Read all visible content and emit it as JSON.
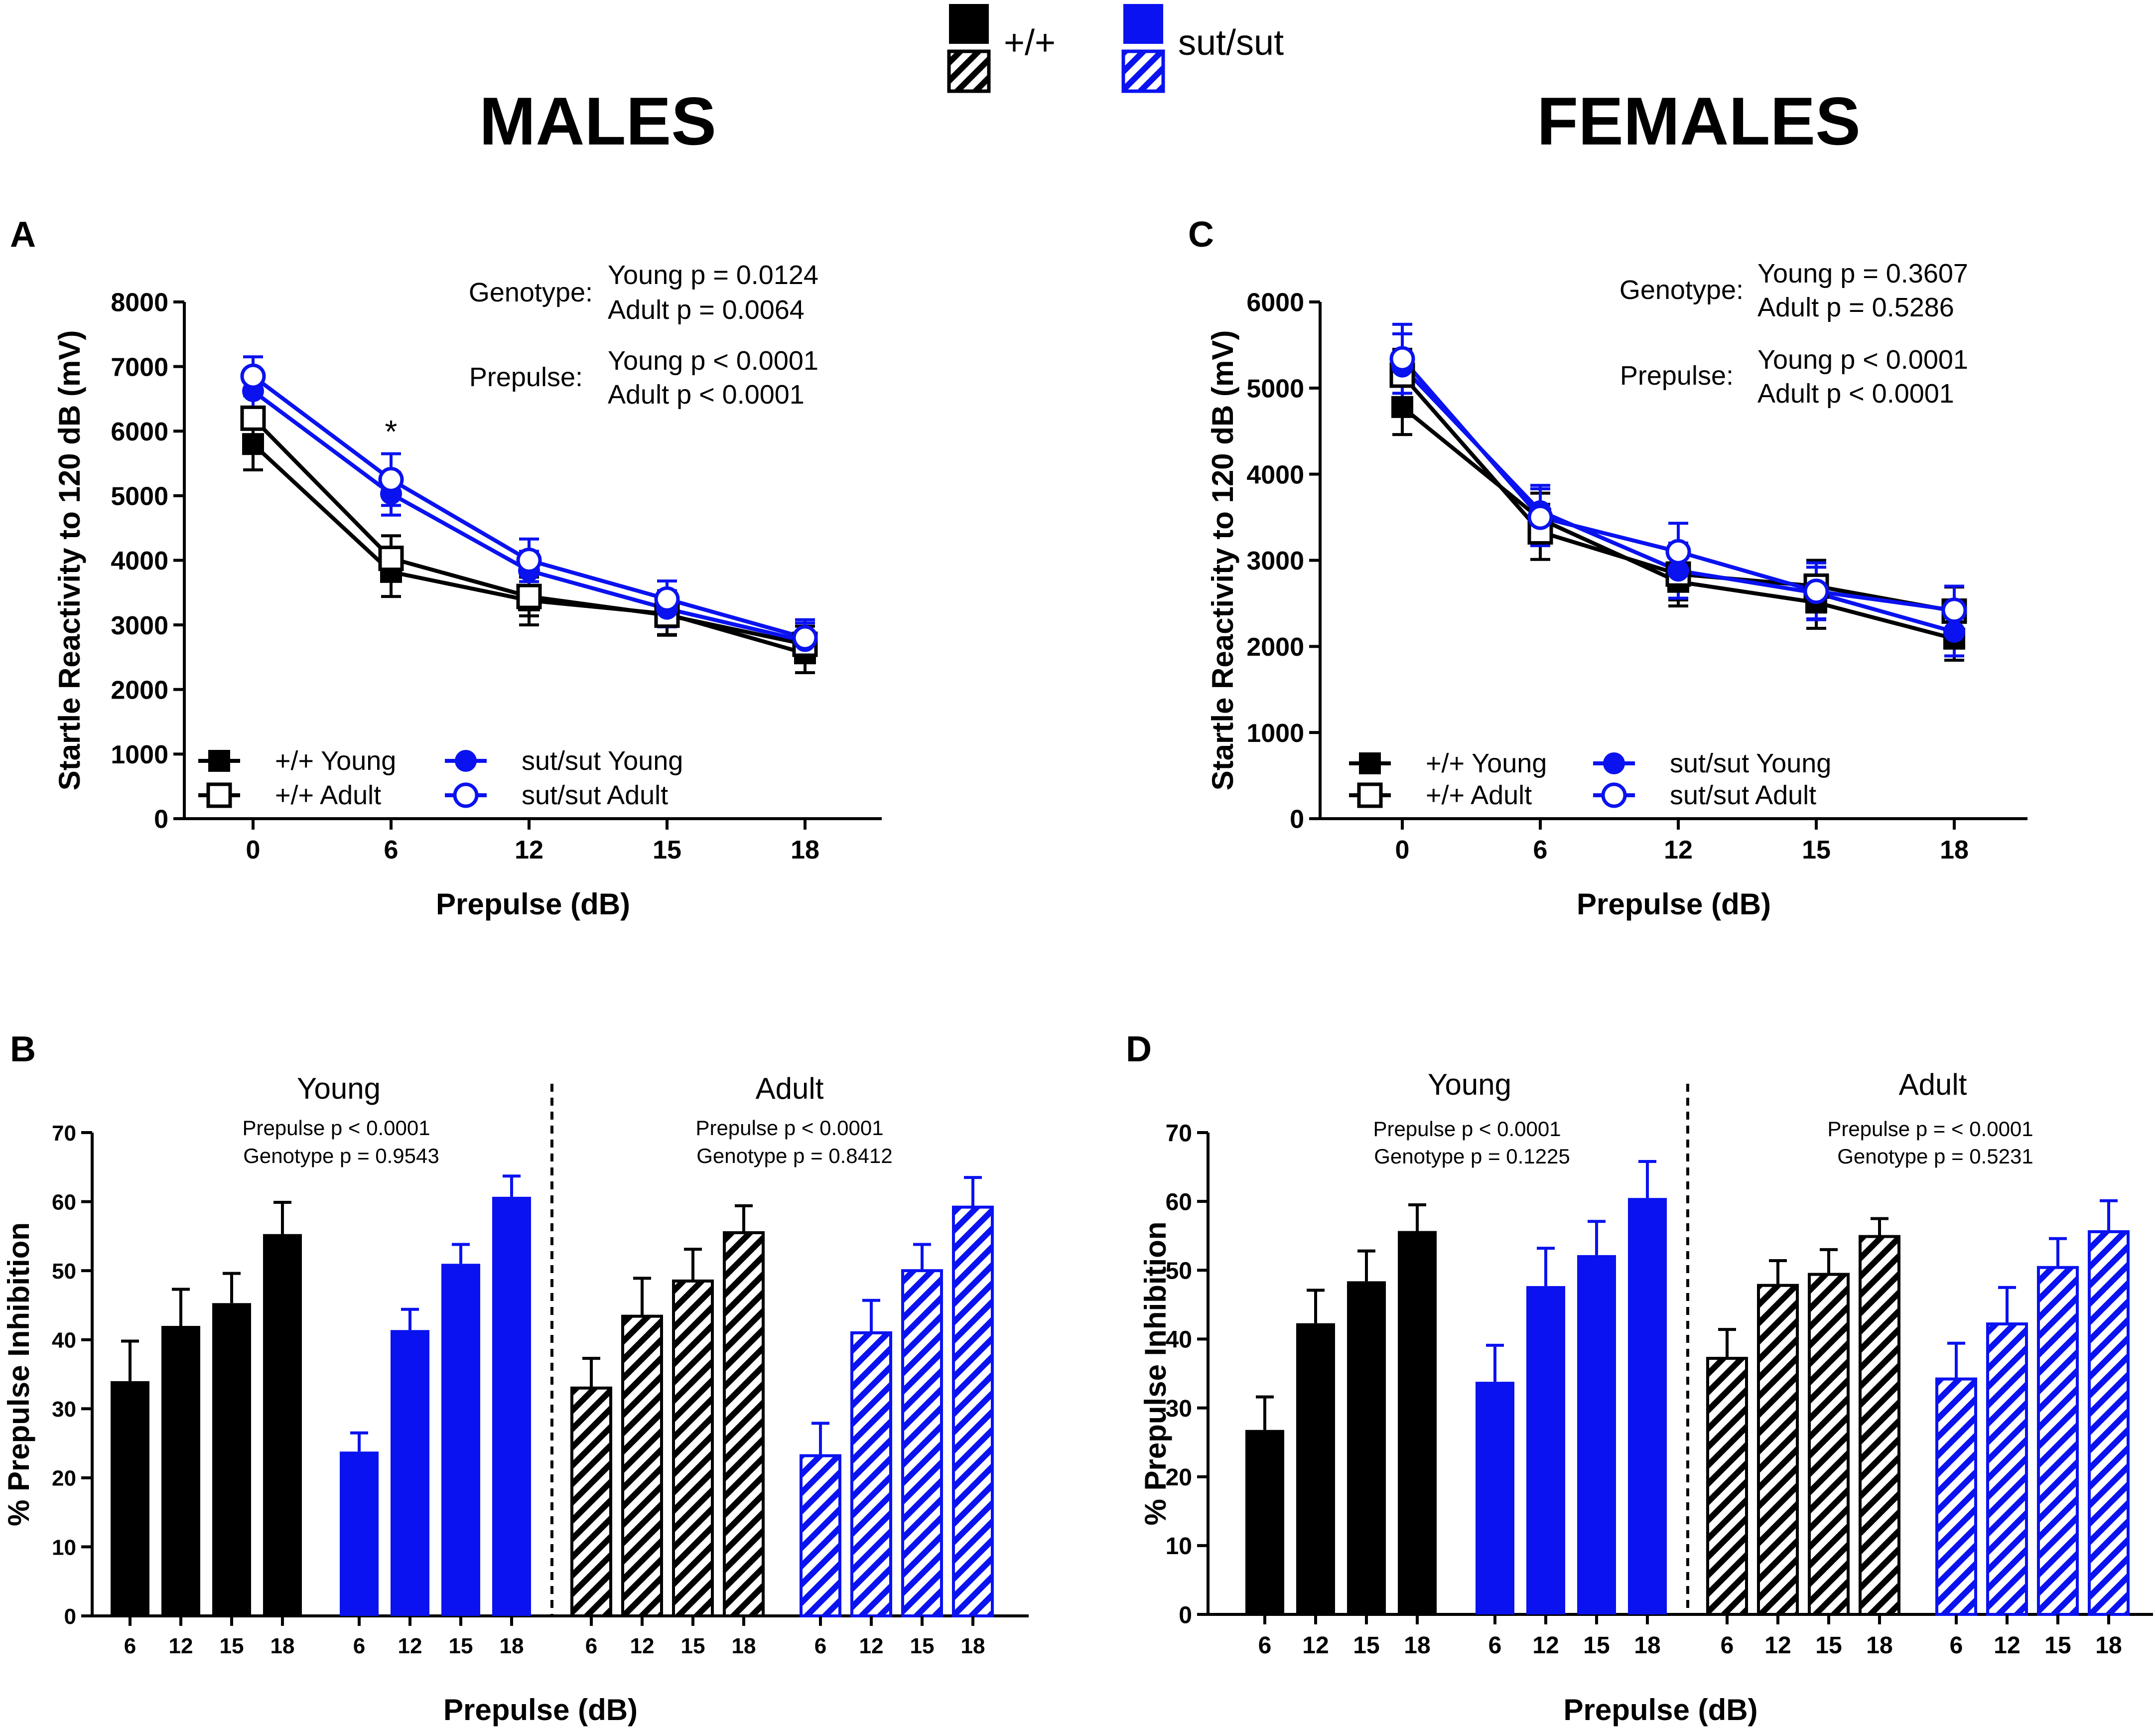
{
  "colors": {
    "black": "#000000",
    "blue": "#0a12f0"
  },
  "legend": {
    "wt_label": "+/+",
    "mut_label": "sut/sut"
  },
  "headings": {
    "males": "MALES",
    "females": "FEMALES"
  },
  "panels": {
    "a": "A",
    "b": "B",
    "c": "C",
    "d": "D"
  },
  "stats": {
    "A": {
      "genotype_label": "Genotype:",
      "genotype_young": "Young p = 0.0124",
      "genotype_adult": "Adult p = 0.0064",
      "prepulse_label": "Prepulse:",
      "prepulse_young": "Young p < 0.0001",
      "prepulse_adult": "Adult p < 0.0001"
    },
    "C": {
      "genotype_label": "Genotype:",
      "genotype_young": "Young p = 0.3607",
      "genotype_adult": "Adult p = 0.5286",
      "prepulse_label": "Prepulse:",
      "prepulse_young": "Young p < 0.0001",
      "prepulse_adult": "Adult p < 0.0001"
    },
    "B": {
      "young_title": "Young",
      "adult_title": "Adult",
      "young_prepulse": "Prepulse p < 0.0001",
      "young_genotype": "Genotype p = 0.9543",
      "adult_prepulse": "Prepulse p < 0.0001",
      "adult_genotype": "Genotype p = 0.8412"
    },
    "D": {
      "young_title": "Young",
      "adult_title": "Adult",
      "young_prepulse": "Prepulse p < 0.0001",
      "young_genotype": "Genotype p = 0.1225",
      "adult_prepulse": "Prepulse p = < 0.0001",
      "adult_genotype": "Genotype p = 0.5231"
    }
  },
  "chart_data": [
    {
      "panel": "A",
      "type": "line",
      "xlabel": "Prepulse (dB)",
      "ylabel": "Startle Reactivity to 120 dB (mV)",
      "categories": [
        "0",
        "6",
        "12",
        "15",
        "18"
      ],
      "ylim": [
        0,
        8000
      ],
      "yticks": [
        0,
        1000,
        2000,
        3000,
        4000,
        5000,
        6000,
        7000,
        8000
      ],
      "significance": {
        "category": "6",
        "mark": "*"
      },
      "series": [
        {
          "name": "+/+ Young",
          "color": "black",
          "marker": "square-filled",
          "values": [
            5800,
            3820,
            3380,
            3170,
            2560
          ],
          "errors": [
            400,
            380,
            380,
            330,
            300
          ]
        },
        {
          "name": "+/+ Adult",
          "color": "black",
          "marker": "square-open",
          "values": [
            6200,
            4030,
            3440,
            3150,
            2700
          ],
          "errors": [
            350,
            350,
            300,
            300,
            280
          ]
        },
        {
          "name": "sut/sut Young",
          "color": "blue",
          "marker": "circle-filled",
          "values": [
            6620,
            5030,
            3840,
            3250,
            2750
          ],
          "errors": [
            330,
            330,
            300,
            280,
            280
          ]
        },
        {
          "name": "sut/sut Adult",
          "color": "blue",
          "marker": "circle-open",
          "values": [
            6850,
            5250,
            4000,
            3400,
            2800
          ],
          "errors": [
            300,
            400,
            330,
            280,
            280
          ]
        }
      ]
    },
    {
      "panel": "C",
      "type": "line",
      "xlabel": "Prepulse (dB)",
      "ylabel": "Startle Reactivity to 120 dB (mV)",
      "categories": [
        "0",
        "6",
        "12",
        "15",
        "18"
      ],
      "ylim": [
        0,
        6000
      ],
      "yticks": [
        0,
        1000,
        2000,
        3000,
        4000,
        5000,
        6000
      ],
      "series": [
        {
          "name": "+/+ Young",
          "color": "black",
          "marker": "square-filled",
          "values": [
            4780,
            3480,
            2750,
            2510,
            2090
          ],
          "errors": [
            320,
            300,
            280,
            300,
            250
          ]
        },
        {
          "name": "+/+ Adult",
          "color": "black",
          "marker": "square-open",
          "values": [
            5150,
            3330,
            2840,
            2700,
            2410
          ],
          "errors": [
            300,
            320,
            300,
            300,
            280
          ]
        },
        {
          "name": "sut/sut Young",
          "color": "blue",
          "marker": "circle-filled",
          "values": [
            5250,
            3570,
            2880,
            2620,
            2170
          ],
          "errors": [
            380,
            300,
            320,
            300,
            280
          ]
        },
        {
          "name": "sut/sut Adult",
          "color": "blue",
          "marker": "circle-open",
          "values": [
            5340,
            3500,
            3100,
            2640,
            2420
          ],
          "errors": [
            400,
            330,
            330,
            330,
            280
          ]
        }
      ]
    },
    {
      "panel": "B",
      "type": "bar",
      "xlabel": "Prepulse (dB)",
      "ylabel": "% Prepulse Inhibition",
      "ylim": [
        0,
        70
      ],
      "yticks": [
        0,
        10,
        20,
        30,
        40,
        50,
        60,
        70
      ],
      "categories": [
        "6",
        "12",
        "15",
        "18"
      ],
      "groups": [
        {
          "name": "+/+ Young",
          "color": "black",
          "pattern": "solid",
          "values": [
            34,
            42,
            45.3,
            55.3
          ],
          "errors": [
            5.8,
            5.3,
            4.3,
            4.6
          ]
        },
        {
          "name": "sut/sut Young",
          "color": "blue",
          "pattern": "solid",
          "values": [
            23.8,
            41.4,
            51,
            60.7
          ],
          "errors": [
            2.7,
            3,
            2.8,
            3
          ]
        },
        {
          "name": "+/+ Adult",
          "color": "black",
          "pattern": "hatched",
          "values": [
            33,
            43.4,
            48.5,
            55.5
          ],
          "errors": [
            4.3,
            5.5,
            4.6,
            3.9
          ]
        },
        {
          "name": "sut/sut Adult",
          "color": "blue",
          "pattern": "hatched",
          "values": [
            23.2,
            41,
            50,
            59.2
          ],
          "errors": [
            4.7,
            4.7,
            3.8,
            4.3
          ]
        }
      ]
    },
    {
      "panel": "D",
      "type": "bar",
      "xlabel": "Prepulse (dB)",
      "ylabel": "% Prepulse Inhibition",
      "ylim": [
        0,
        70
      ],
      "yticks": [
        0,
        10,
        20,
        30,
        40,
        50,
        60,
        70
      ],
      "categories": [
        "6",
        "12",
        "15",
        "18"
      ],
      "groups": [
        {
          "name": "+/+ Young",
          "color": "black",
          "pattern": "solid",
          "values": [
            26.8,
            42.3,
            48.4,
            55.7
          ],
          "errors": [
            4.8,
            4.8,
            4.4,
            3.8
          ]
        },
        {
          "name": "sut/sut Young",
          "color": "blue",
          "pattern": "solid",
          "values": [
            33.8,
            47.7,
            52.2,
            60.5
          ],
          "errors": [
            5.3,
            5.5,
            4.9,
            5.3
          ]
        },
        {
          "name": "+/+ Adult",
          "color": "black",
          "pattern": "hatched",
          "values": [
            37.2,
            47.8,
            49.4,
            54.9
          ],
          "errors": [
            4.2,
            3.6,
            3.6,
            2.6
          ]
        },
        {
          "name": "sut/sut Adult",
          "color": "blue",
          "pattern": "hatched",
          "values": [
            34.2,
            42.2,
            50.4,
            55.6
          ],
          "errors": [
            5.2,
            5.3,
            4.2,
            4.5
          ]
        }
      ]
    }
  ]
}
